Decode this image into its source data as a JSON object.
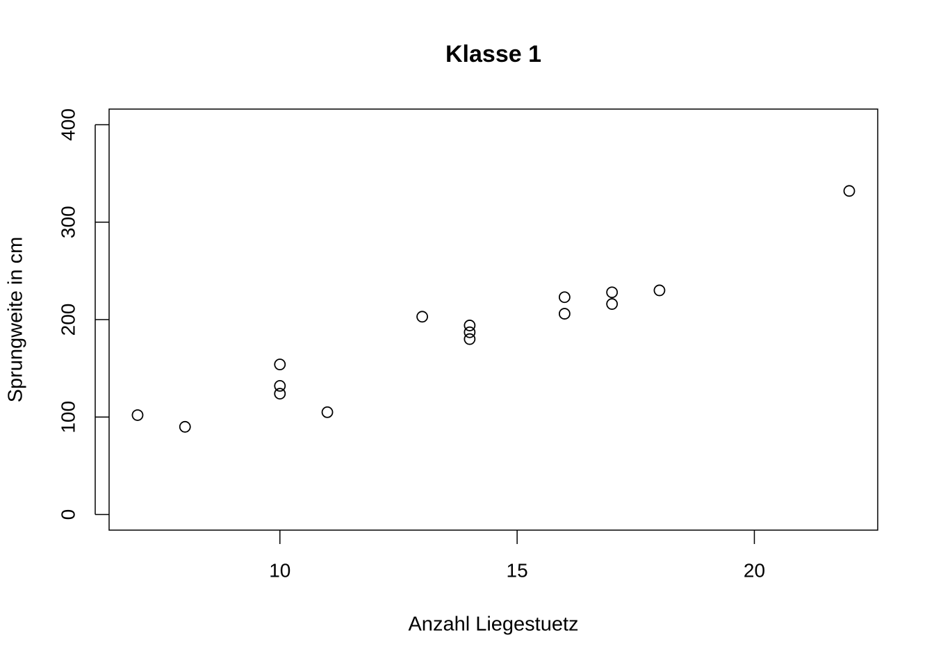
{
  "chart_data": {
    "type": "scatter",
    "title": "Klasse 1",
    "xlabel": "Anzahl Liegestuetz",
    "ylabel": "Sprungweite in cm",
    "x": [
      7,
      8,
      10,
      10,
      10,
      11,
      13,
      14,
      14,
      14,
      16,
      16,
      17,
      17,
      18,
      22
    ],
    "values": [
      102,
      90,
      154,
      132,
      124,
      105,
      203,
      194,
      187,
      180,
      223,
      206,
      228,
      216,
      230,
      332
    ],
    "color": "#000000",
    "xlim": [
      6.4,
      22.6
    ],
    "xticks": [
      10,
      15,
      20
    ],
    "ylim": [
      -16,
      416
    ],
    "yticks": [
      0,
      100,
      200,
      300,
      400
    ]
  }
}
